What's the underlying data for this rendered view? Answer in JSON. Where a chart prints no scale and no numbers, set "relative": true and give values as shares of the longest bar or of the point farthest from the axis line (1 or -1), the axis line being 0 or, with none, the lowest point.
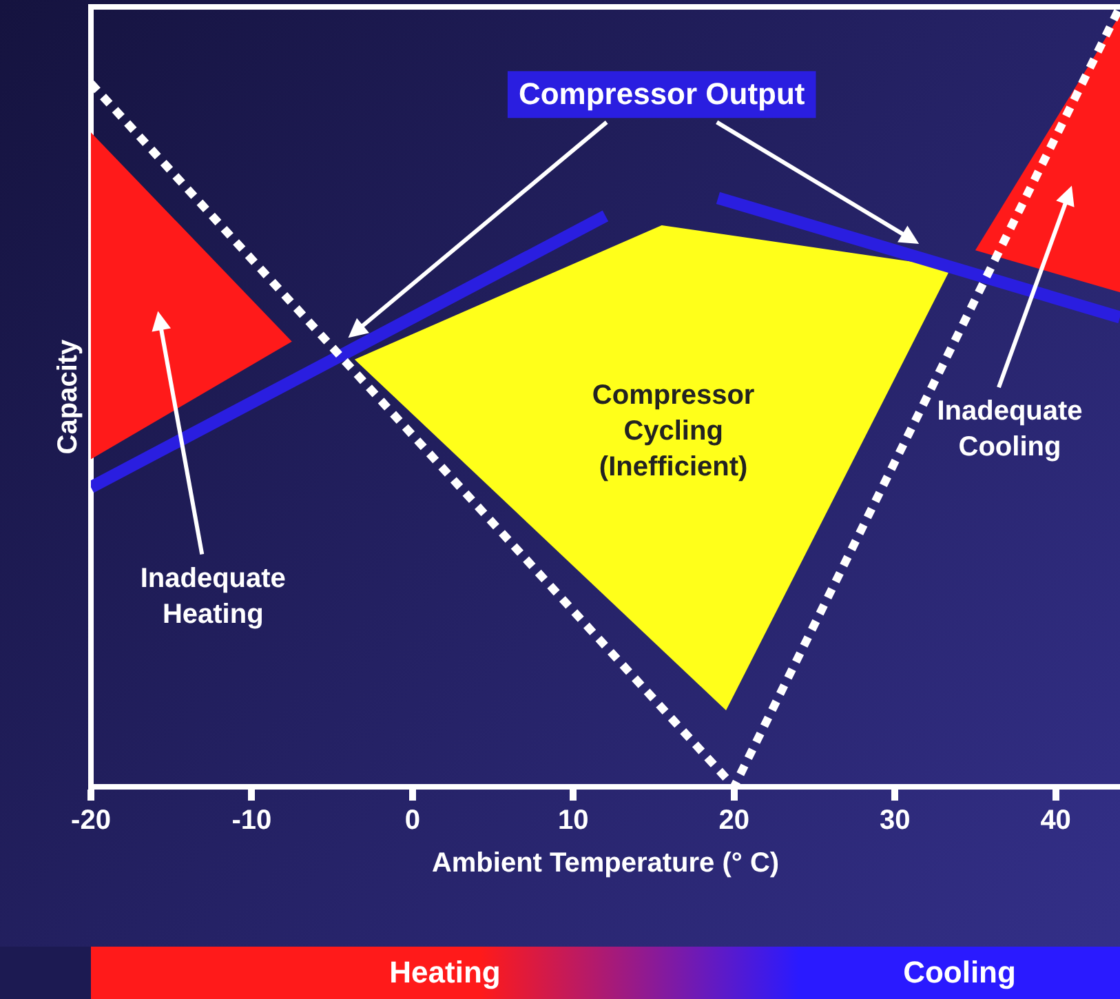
{
  "chart_data": {
    "type": "line",
    "relative": true,
    "xlabel": "Ambient Temperature (° C)",
    "ylabel": "Capacity",
    "xlim": [
      -20,
      44
    ],
    "xticks": [
      -20,
      -10,
      0,
      10,
      20,
      30,
      40
    ],
    "grid": false,
    "legend": false,
    "marker": "none",
    "series": [
      {
        "type": "area",
        "color": "#ff1a1a",
        "x": [
          -20,
          -7.5,
          -20
        ],
        "values": [
          0.839,
          0.571,
          0.42
        ]
      },
      {
        "type": "area",
        "color": "#ffff1a",
        "x": [
          -3.6,
          15.5,
          33.5,
          19.5
        ],
        "values": [
          0.548,
          0.72,
          0.666,
          0.098
        ]
      },
      {
        "type": "area",
        "color": "#ff1a1a",
        "x": [
          35,
          44,
          44
        ],
        "values": [
          0.688,
          0.99,
          0.634
        ]
      },
      {
        "type": "line",
        "name": "Compressor Output",
        "color": "#2a1ee0",
        "x": [
          -20,
          12,
          15.5,
          19,
          44
        ],
        "values": [
          0.384,
          0.732,
          null,
          0.755,
          0.602
        ]
      },
      {
        "type": "line",
        "color": "#ffffff",
        "line_style": "dashed",
        "x": [
          -20,
          20,
          44
        ],
        "values": [
          0.902,
          0,
          1.0
        ]
      }
    ],
    "annotations": [
      "Inadequate Heating",
      "Compressor Cycling (Inefficient)",
      "Inadequate Cooling",
      "Heating",
      "Cooling"
    ]
  }
}
